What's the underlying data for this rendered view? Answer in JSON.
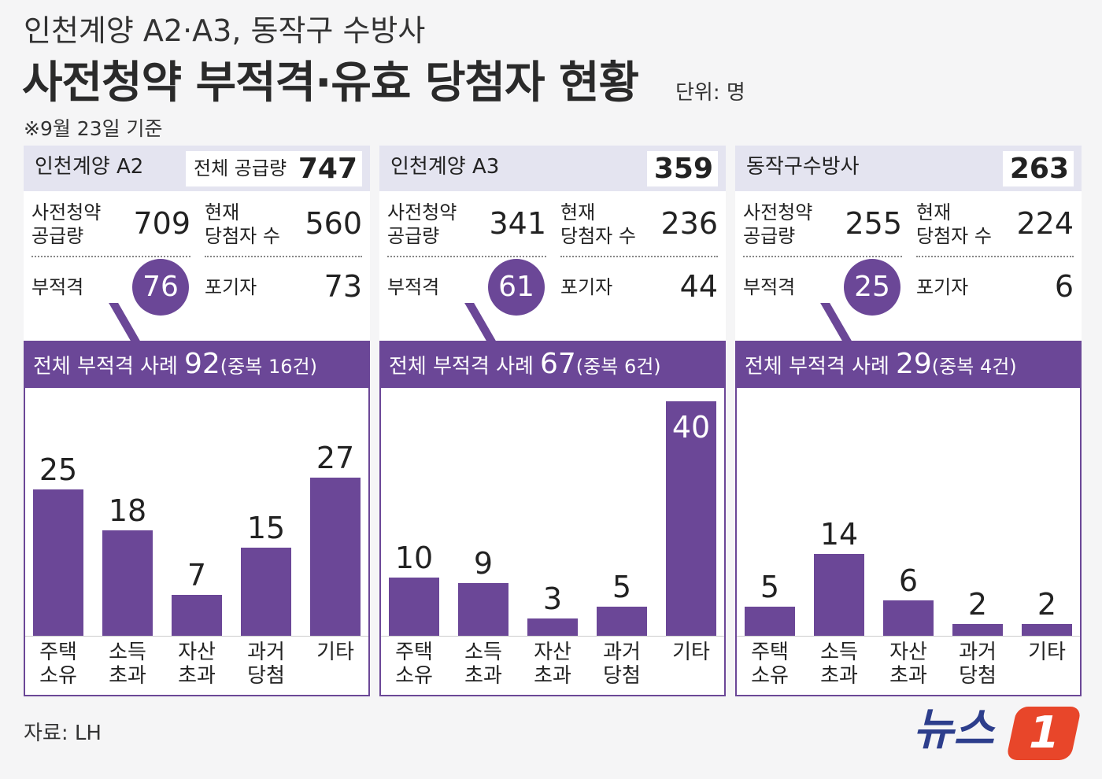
{
  "subtitle": "인천계양 A2·A3, 동작구 수방사",
  "title": "사전청약 부적격·유효 당첨자 현황",
  "unit": "단위: 명",
  "note": "※9월 23일 기준",
  "panels": [
    {
      "name": "인천계양 A2",
      "total_label": "전체 공급량",
      "total": 747,
      "stats": [
        {
          "label": "사전청약\n공급량",
          "value": 709
        },
        {
          "label": "현재\n당첨자 수",
          "value": 560
        },
        {
          "label": "부적격",
          "value": 76
        },
        {
          "label": "포기자",
          "value": 73
        }
      ],
      "band_label": "전체 부적격 사례",
      "band_value": 92,
      "band_note": "(중복 16건)"
    },
    {
      "name": "인천계양 A3",
      "total": 359,
      "stats": [
        {
          "label": "사전청약\n공급량",
          "value": 341
        },
        {
          "label": "현재\n당첨자 수",
          "value": 236
        },
        {
          "label": "부적격",
          "value": 61
        },
        {
          "label": "포기자",
          "value": 44
        }
      ],
      "band_label": "전체 부적격 사례",
      "band_value": 67,
      "band_note": "(중복 6건)"
    },
    {
      "name": "동작구수방사",
      "total": 263,
      "stats": [
        {
          "label": "사전청약\n공급량",
          "value": 255
        },
        {
          "label": "현재\n당첨자 수",
          "value": 224
        },
        {
          "label": "부적격",
          "value": 25
        },
        {
          "label": "포기자",
          "value": 6
        }
      ],
      "band_label": "전체 부적격 사례",
      "band_value": 29,
      "band_note": "(중복 4건)"
    }
  ],
  "chart_data": [
    {
      "type": "bar",
      "categories": [
        "주택\n소유",
        "소득\n초과",
        "자산\n초과",
        "과거\n당첨",
        "기타"
      ],
      "values": [
        25,
        18,
        7,
        15,
        27
      ],
      "color": "#6b4797"
    },
    {
      "type": "bar",
      "categories": [
        "주택\n소유",
        "소득\n초과",
        "자산\n초과",
        "과거\n당첨",
        "기타"
      ],
      "values": [
        10,
        9,
        3,
        5,
        40
      ],
      "color": "#6b4797"
    },
    {
      "type": "bar",
      "categories": [
        "주택\n소유",
        "소득\n초과",
        "자산\n초과",
        "과거\n당첨",
        "기타"
      ],
      "values": [
        5,
        14,
        6,
        2,
        2
      ],
      "color": "#6b4797"
    }
  ],
  "source": "자료: LH",
  "logo_text": "뉴스",
  "logo_mark": "1"
}
